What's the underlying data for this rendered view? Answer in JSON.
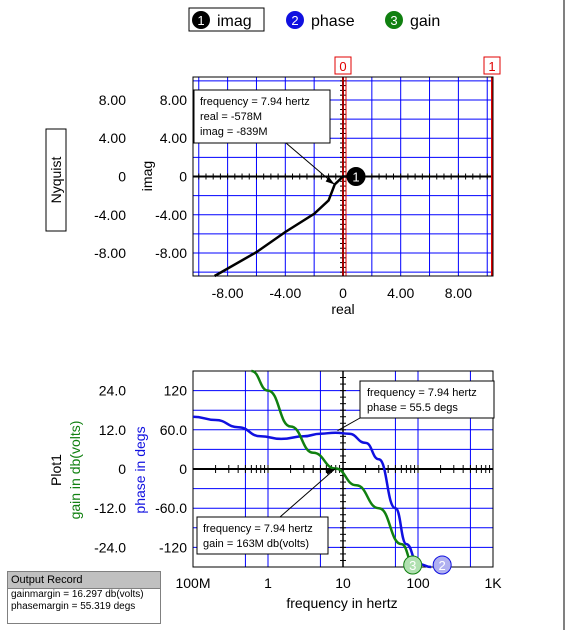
{
  "legend": [
    {
      "number": "1",
      "label": "imag",
      "color": "#000000",
      "selected": true
    },
    {
      "number": "2",
      "label": "phase",
      "color": "#1010e0",
      "selected": false
    },
    {
      "number": "3",
      "label": "gain",
      "color": "#108010",
      "selected": false
    }
  ],
  "nyquist_button": "Nyquist",
  "plot1_label": "Plot1",
  "output_record": {
    "title": "Output Record",
    "lines": [
      "gainmargin = 16.297 db(volts)",
      "phasemargin = 55.319 degs"
    ]
  },
  "colors": {
    "grid": "#0000ff",
    "cursor_red": "#e00000",
    "imag_trace": "#000000",
    "phase_trace": "#1010e0",
    "gain_trace": "#108010",
    "bubble_gain_fill": "#b0e0b0",
    "bubble_phase_fill": "#b0b0f0"
  },
  "chart_data": [
    {
      "type": "line",
      "xlabel": "real",
      "ylabel": "imag",
      "xlim": [
        -10.4,
        10.4
      ],
      "ylim": [
        -10.4,
        10.4
      ],
      "x_ticks": [
        "-8.00",
        "-4.00",
        "0",
        "4.00",
        "8.00"
      ],
      "x_tick_values": [
        -8,
        -4,
        0,
        4,
        8
      ],
      "y_ticks": [
        "8.00",
        "4.00",
        "0",
        "-4.00",
        "-8.00"
      ],
      "y_tick_values": [
        8,
        4,
        0,
        -4,
        -8
      ],
      "outer_y_ticks": [
        "8.00",
        "4.00",
        "0",
        "-4.00",
        "-8.00"
      ],
      "cursors": [
        {
          "label": "0",
          "x": 0
        },
        {
          "label": "1",
          "x": 10.4
        }
      ],
      "series": [
        {
          "values_xy": [
            [
              -8.9,
              -10.4
            ],
            [
              -6.0,
              -7.9
            ],
            [
              -4.0,
              -5.8
            ],
            [
              -2.0,
              -3.9
            ],
            [
              -1.0,
              -2.5
            ],
            [
              -0.578,
              -0.839
            ],
            [
              0,
              0
            ],
            [
              0.6,
              0
            ]
          ]
        }
      ],
      "marker": {
        "label": "1",
        "x": 0.9,
        "y": 0
      },
      "annotation": {
        "lines": [
          "frequency = 7.94 hertz",
          "real = -578M",
          "imag = -839M"
        ],
        "at": [
          -0.578,
          -0.839
        ]
      },
      "grid": true
    },
    {
      "type": "line",
      "xlabel": "frequency in hertz",
      "x_scale": "log",
      "xlim": [
        0.1,
        1000
      ],
      "x_ticks": [
        "100M",
        "1",
        "10",
        "100",
        "1K"
      ],
      "x_tick_values": [
        0.1,
        1,
        10,
        100,
        1000
      ],
      "y_axes": [
        {
          "label": "phase in degs",
          "color": "#1010e0",
          "ylim": [
            -150,
            150
          ],
          "ticks": [
            "120",
            "60.0",
            "0",
            "-60.0",
            "-120"
          ],
          "tick_values": [
            120,
            60,
            0,
            -60,
            -120
          ]
        },
        {
          "label": "gain in db(volts)",
          "color": "#108010",
          "ylim": [
            -30,
            30
          ],
          "ticks": [
            "24.0",
            "12.0",
            "0",
            "-12.0",
            "-24.0"
          ],
          "tick_values": [
            24,
            12,
            0,
            -12,
            -24
          ]
        }
      ],
      "series": [
        {
          "axis": 0,
          "values_xy": [
            [
              0.1,
              80
            ],
            [
              0.2,
              75
            ],
            [
              0.4,
              64
            ],
            [
              0.8,
              50
            ],
            [
              1.5,
              46
            ],
            [
              3,
              50
            ],
            [
              5,
              54
            ],
            [
              7.94,
              55.5
            ],
            [
              12,
              54
            ],
            [
              20,
              40
            ],
            [
              30,
              15
            ],
            [
              50,
              -60
            ],
            [
              70,
              -115
            ],
            [
              100,
              -145
            ],
            [
              150,
              -150
            ]
          ]
        },
        {
          "axis": 1,
          "values_xy": [
            [
              0.6,
              30
            ],
            [
              1.0,
              24
            ],
            [
              2.0,
              13
            ],
            [
              4.0,
              5
            ],
            [
              7.94,
              0.163
            ],
            [
              15,
              -5
            ],
            [
              30,
              -12
            ],
            [
              60,
              -23
            ],
            [
              90,
              -30
            ]
          ]
        }
      ],
      "markers": [
        {
          "label": "3",
          "x": 85,
          "y": -150,
          "series": 1
        },
        {
          "label": "2",
          "x": 210,
          "y": -150,
          "series": 0
        }
      ],
      "annotations": [
        {
          "lines": [
            "frequency = 7.94 hertz",
            "phase = 55.5 degs"
          ],
          "at": [
            7.94,
            55.5
          ]
        },
        {
          "lines": [
            "frequency = 7.94 hertz",
            "gain = 163M db(volts)"
          ],
          "at": [
            7.94,
            0.163
          ]
        }
      ],
      "grid": true
    }
  ]
}
